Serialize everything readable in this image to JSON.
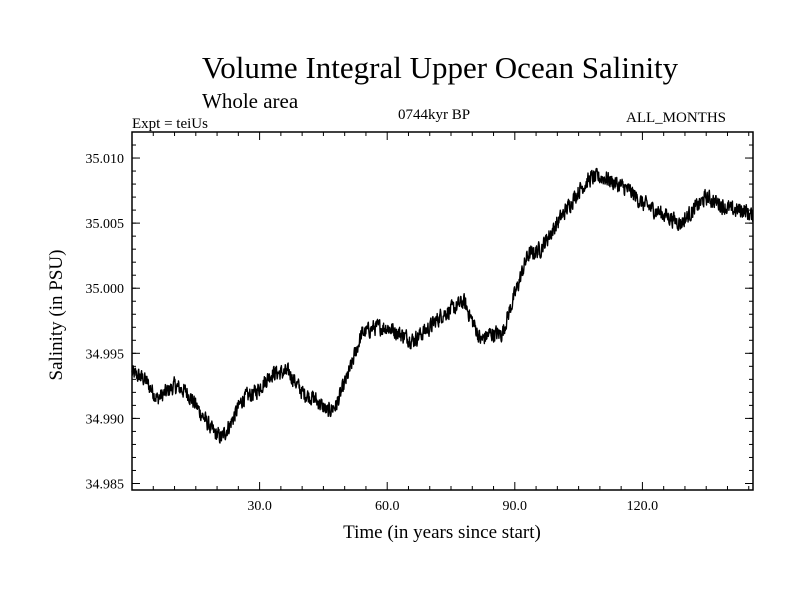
{
  "chart_data": {
    "type": "line",
    "title": "Volume Integral Upper Ocean Salinity",
    "subtitle": "Whole area",
    "experiment_label": "Expt = teiUs",
    "period_label": "0744kyr BP",
    "months_label": "ALL_MONTHS",
    "xlabel": "Time (in years since start)",
    "ylabel": "Salinity (in PSU)",
    "xlim": [
      0,
      146
    ],
    "ylim": [
      34.9845,
      35.012
    ],
    "x_ticks": [
      30,
      60,
      90,
      120
    ],
    "x_tick_labels": [
      "30.0",
      "60.0",
      "90.0",
      "120.0"
    ],
    "y_ticks": [
      34.985,
      34.99,
      34.995,
      35.0,
      35.005,
      35.01
    ],
    "y_tick_labels": [
      "34.985",
      "34.990",
      "34.995",
      "35.000",
      "35.005",
      "35.010"
    ],
    "grid": false,
    "series": [
      {
        "name": "Salinity",
        "color": "#000000",
        "x": [
          0,
          3,
          6,
          10,
          13,
          16,
          19,
          21,
          23,
          26,
          29,
          33,
          37,
          40,
          43,
          46,
          48,
          51,
          54,
          57,
          60,
          63,
          66,
          70,
          73,
          76,
          78,
          80,
          82,
          84,
          87,
          90,
          93,
          96,
          99,
          102,
          105,
          108,
          111,
          114,
          117,
          120,
          123,
          126,
          129,
          132,
          135,
          138,
          141,
          144,
          146
        ],
        "values": [
          34.9935,
          34.993,
          34.9915,
          34.9925,
          34.992,
          34.9905,
          34.989,
          34.9885,
          34.9895,
          34.9915,
          34.992,
          34.9935,
          34.9935,
          34.992,
          34.9915,
          34.9905,
          34.991,
          34.9935,
          34.9965,
          34.997,
          34.997,
          34.9965,
          34.996,
          34.997,
          34.998,
          34.9985,
          34.999,
          34.9975,
          34.996,
          34.9965,
          34.9965,
          34.9995,
          35.0025,
          35.003,
          35.0045,
          35.006,
          35.0075,
          35.0085,
          35.0085,
          35.008,
          35.0075,
          35.0065,
          35.006,
          35.0055,
          35.005,
          35.006,
          35.007,
          35.0065,
          35.006,
          35.006,
          35.0055
        ],
        "noise_amplitude": 0.0011
      }
    ]
  }
}
